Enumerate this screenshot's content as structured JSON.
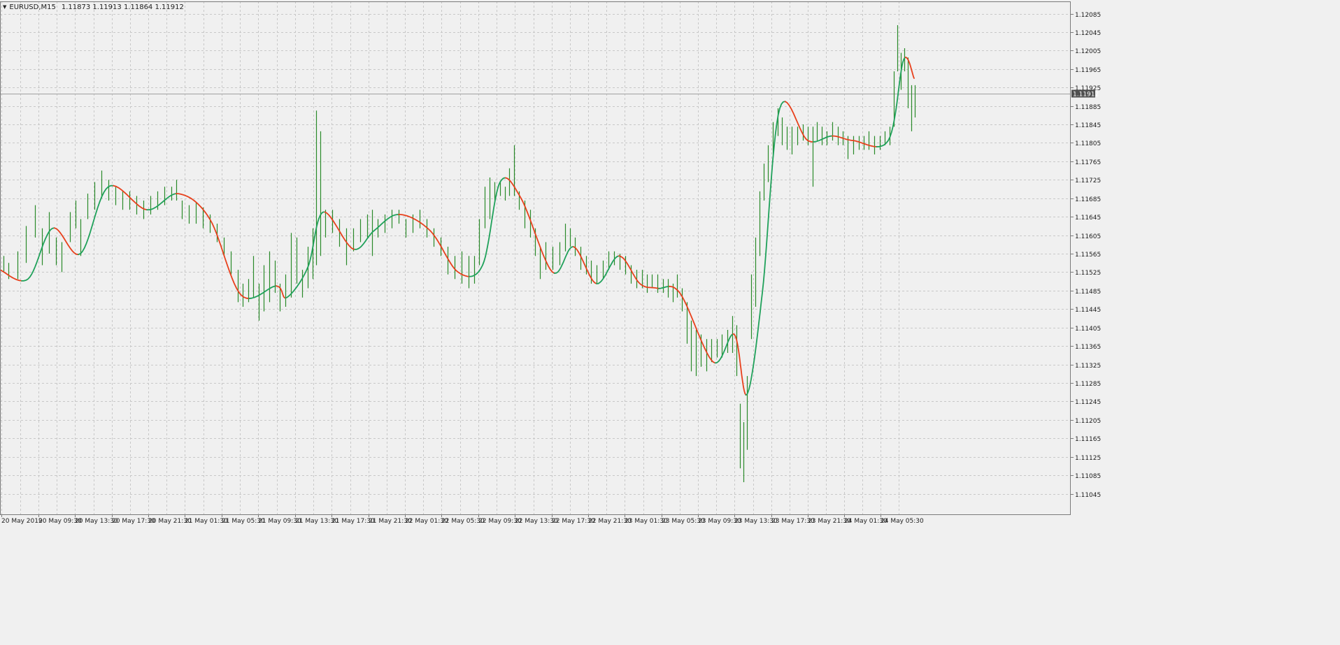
{
  "header": {
    "symbol": "EURUSD,M15",
    "quote": "1.11873 1.11913 1.11864 1.11912"
  },
  "price_axis": {
    "ticks": [
      "1.12085",
      "1.12045",
      "1.12005",
      "1.11965",
      "1.11925",
      "1.11885",
      "1.11845",
      "1.11805",
      "1.11765",
      "1.11725",
      "1.11685",
      "1.11645",
      "1.11605",
      "1.11565",
      "1.11525",
      "1.11485",
      "1.11445",
      "1.11405",
      "1.11365",
      "1.11325",
      "1.11285",
      "1.11245",
      "1.11205",
      "1.11165",
      "1.11125",
      "1.11085",
      "1.11045"
    ],
    "current_price_label": "1.11912"
  },
  "time_axis": {
    "labels": [
      "20 May 2019",
      "20 May 09:30",
      "20 May 13:30",
      "20 May 17:30",
      "20 May 21:30",
      "21 May 01:30",
      "21 May 05:30",
      "21 May 09:30",
      "21 May 13:30",
      "21 May 17:30",
      "21 May 21:30",
      "22 May 01:30",
      "22 May 05:30",
      "22 May 09:30",
      "22 May 13:30",
      "22 May 17:30",
      "22 May 21:30",
      "23 May 01:30",
      "23 May 05:30",
      "23 May 09:30",
      "23 May 13:30",
      "23 May 17:30",
      "23 May 21:30",
      "24 May 01:30",
      "24 May 05:30"
    ]
  },
  "colors": {
    "background": "#f0f0f0",
    "grid": "#c8c8c8",
    "bar": "#2a8a2a",
    "ma_up": "#1fa15a",
    "ma_down": "#e8401c",
    "price_line": "#a0a0a0",
    "price_label_bg": "#505050",
    "price_label_fg": "#ffffff",
    "axis_text": "#202020"
  },
  "chart_data": {
    "type": "ohlc",
    "symbol": "EURUSD",
    "timeframe": "M15",
    "ylim": [
      1.11045,
      1.12085
    ],
    "current_price": 1.11912,
    "ma_anchors": [
      [
        0,
        1.1153
      ],
      [
        40,
        1.1151
      ],
      [
        75,
        1.1162
      ],
      [
        115,
        1.11565
      ],
      [
        155,
        1.1171
      ],
      [
        210,
        1.1166
      ],
      [
        255,
        1.11695
      ],
      [
        300,
        1.1164
      ],
      [
        345,
        1.11475
      ],
      [
        395,
        1.11495
      ],
      [
        410,
        1.1147
      ],
      [
        440,
        1.11535
      ],
      [
        462,
        1.11655
      ],
      [
        505,
        1.11575
      ],
      [
        535,
        1.11615
      ],
      [
        570,
        1.1165
      ],
      [
        615,
        1.11615
      ],
      [
        655,
        1.11525
      ],
      [
        690,
        1.1154
      ],
      [
        715,
        1.1172
      ],
      [
        745,
        1.11685
      ],
      [
        790,
        1.11525
      ],
      [
        820,
        1.1158
      ],
      [
        853,
        1.115
      ],
      [
        885,
        1.1156
      ],
      [
        915,
        1.115
      ],
      [
        940,
        1.1149
      ],
      [
        972,
        1.1148
      ],
      [
        1020,
        1.1133
      ],
      [
        1050,
        1.1139
      ],
      [
        1068,
        1.1126
      ],
      [
        1090,
        1.1148
      ],
      [
        1115,
        1.1188
      ],
      [
        1155,
        1.1181
      ],
      [
        1190,
        1.1182
      ],
      [
        1220,
        1.1181
      ],
      [
        1270,
        1.1181
      ],
      [
        1292,
        1.11985
      ],
      [
        1307,
        1.11945
      ]
    ],
    "bars": [
      [
        5,
        1.11525,
        1.1156
      ],
      [
        12,
        1.1151,
        1.11545
      ],
      [
        25,
        1.1151,
        1.1157
      ],
      [
        37,
        1.11545,
        1.11625
      ],
      [
        50,
        1.116,
        1.1167
      ],
      [
        60,
        1.1154,
        1.1162
      ],
      [
        70,
        1.11565,
        1.11655
      ],
      [
        80,
        1.1154,
        1.116
      ],
      [
        88,
        1.11525,
        1.1159
      ],
      [
        100,
        1.1159,
        1.11655
      ],
      [
        108,
        1.1162,
        1.1168
      ],
      [
        115,
        1.1156,
        1.1164
      ],
      [
        125,
        1.1164,
        1.11695
      ],
      [
        135,
        1.1166,
        1.1172
      ],
      [
        145,
        1.11685,
        1.11745
      ],
      [
        155,
        1.1168,
        1.11725
      ],
      [
        165,
        1.1167,
        1.1171
      ],
      [
        175,
        1.1166,
        1.117
      ],
      [
        185,
        1.1166,
        1.117
      ],
      [
        195,
        1.1165,
        1.1169
      ],
      [
        205,
        1.1164,
        1.1168
      ],
      [
        215,
        1.1165,
        1.1169
      ],
      [
        225,
        1.1166,
        1.117
      ],
      [
        235,
        1.1167,
        1.1171
      ],
      [
        245,
        1.1168,
        1.1171
      ],
      [
        252,
        1.1168,
        1.11725
      ],
      [
        260,
        1.1164,
        1.1168
      ],
      [
        270,
        1.1163,
        1.1167
      ],
      [
        280,
        1.1163,
        1.11675
      ],
      [
        290,
        1.1162,
        1.11665
      ],
      [
        300,
        1.1161,
        1.1165
      ],
      [
        310,
        1.1159,
        1.1163
      ],
      [
        320,
        1.1156,
        1.116
      ],
      [
        330,
        1.1152,
        1.1157
      ],
      [
        340,
        1.1146,
        1.1153
      ],
      [
        347,
        1.1145,
        1.115
      ],
      [
        355,
        1.1146,
        1.1151
      ],
      [
        362,
        1.1147,
        1.1156
      ],
      [
        370,
        1.1142,
        1.115
      ],
      [
        377,
        1.1144,
        1.1154
      ],
      [
        385,
        1.1146,
        1.1157
      ],
      [
        393,
        1.1148,
        1.1155
      ],
      [
        400,
        1.1144,
        1.115
      ],
      [
        408,
        1.1145,
        1.1152
      ],
      [
        416,
        1.1147,
        1.1161
      ],
      [
        424,
        1.115,
        1.116
      ],
      [
        432,
        1.1147,
        1.1153
      ],
      [
        440,
        1.1149,
        1.1158
      ],
      [
        447,
        1.1151,
        1.1162
      ],
      [
        452,
        1.1154,
        1.11875
      ],
      [
        458,
        1.1156,
        1.1183
      ],
      [
        465,
        1.116,
        1.1166
      ],
      [
        475,
        1.1161,
        1.1166
      ],
      [
        485,
        1.1158,
        1.1164
      ],
      [
        495,
        1.1154,
        1.1162
      ],
      [
        505,
        1.1157,
        1.1162
      ],
      [
        515,
        1.1159,
        1.1164
      ],
      [
        525,
        1.116,
        1.1165
      ],
      [
        532,
        1.1156,
        1.1166
      ],
      [
        540,
        1.116,
        1.1164
      ],
      [
        550,
        1.1161,
        1.1165
      ],
      [
        560,
        1.1162,
        1.1166
      ],
      [
        570,
        1.1163,
        1.1166
      ],
      [
        580,
        1.116,
        1.1164
      ],
      [
        590,
        1.1161,
        1.1165
      ],
      [
        600,
        1.1162,
        1.1166
      ],
      [
        610,
        1.116,
        1.1164
      ],
      [
        620,
        1.1158,
        1.1162
      ],
      [
        630,
        1.1156,
        1.116
      ],
      [
        640,
        1.1152,
        1.1158
      ],
      [
        650,
        1.1151,
        1.1156
      ],
      [
        660,
        1.115,
        1.1157
      ],
      [
        670,
        1.1149,
        1.1156
      ],
      [
        678,
        1.115,
        1.1156
      ],
      [
        685,
        1.1154,
        1.1164
      ],
      [
        693,
        1.1162,
        1.1171
      ],
      [
        700,
        1.1164,
        1.1173
      ],
      [
        707,
        1.1168,
        1.1172
      ],
      [
        715,
        1.1169,
        1.1172
      ],
      [
        722,
        1.1168,
        1.1171
      ],
      [
        728,
        1.1169,
        1.1175
      ],
      [
        735,
        1.1169,
        1.118
      ],
      [
        742,
        1.1166,
        1.117
      ],
      [
        750,
        1.1162,
        1.1168
      ],
      [
        758,
        1.116,
        1.1166
      ],
      [
        765,
        1.1156,
        1.1162
      ],
      [
        772,
        1.1151,
        1.1158
      ],
      [
        780,
        1.1153,
        1.1159
      ],
      [
        790,
        1.1153,
        1.1158
      ],
      [
        800,
        1.1154,
        1.1159
      ],
      [
        808,
        1.1157,
        1.1163
      ],
      [
        815,
        1.1158,
        1.1162
      ],
      [
        822,
        1.1156,
        1.116
      ],
      [
        830,
        1.1153,
        1.1158
      ],
      [
        838,
        1.1152,
        1.1156
      ],
      [
        845,
        1.115,
        1.1155
      ],
      [
        853,
        1.115,
        1.1154
      ],
      [
        862,
        1.1151,
        1.1155
      ],
      [
        870,
        1.1153,
        1.1157
      ],
      [
        878,
        1.1154,
        1.1157
      ],
      [
        886,
        1.1153,
        1.11565
      ],
      [
        894,
        1.1152,
        1.1156
      ],
      [
        902,
        1.115,
        1.1154
      ],
      [
        910,
        1.1149,
        1.1153
      ],
      [
        918,
        1.1149,
        1.1153
      ],
      [
        925,
        1.1148,
        1.1152
      ],
      [
        932,
        1.1149,
        1.1152
      ],
      [
        940,
        1.1148,
        1.1152
      ],
      [
        948,
        1.1148,
        1.1151
      ],
      [
        955,
        1.1147,
        1.1151
      ],
      [
        962,
        1.1146,
        1.115
      ],
      [
        968,
        1.1147,
        1.1152
      ],
      [
        975,
        1.1144,
        1.1149
      ],
      [
        982,
        1.1137,
        1.1146
      ],
      [
        988,
        1.1131,
        1.1142
      ],
      [
        995,
        1.113,
        1.114
      ],
      [
        1002,
        1.1132,
        1.1139
      ],
      [
        1010,
        1.1131,
        1.1138
      ],
      [
        1017,
        1.1133,
        1.1138
      ],
      [
        1025,
        1.1134,
        1.1138
      ],
      [
        1032,
        1.1134,
        1.1139
      ],
      [
        1040,
        1.1135,
        1.114
      ],
      [
        1047,
        1.1135,
        1.1143
      ],
      [
        1053,
        1.113,
        1.1141
      ],
      [
        1058,
        1.111,
        1.1124
      ],
      [
        1063,
        1.1107,
        1.112
      ],
      [
        1068,
        1.1114,
        1.113
      ],
      [
        1074,
        1.1138,
        1.1152
      ],
      [
        1080,
        1.1145,
        1.116
      ],
      [
        1086,
        1.1156,
        1.117
      ],
      [
        1092,
        1.1168,
        1.1176
      ],
      [
        1098,
        1.1172,
        1.118
      ],
      [
        1105,
        1.1178,
        1.1185
      ],
      [
        1112,
        1.1182,
        1.1188
      ],
      [
        1118,
        1.118,
        1.1186
      ],
      [
        1125,
        1.1179,
        1.1184
      ],
      [
        1132,
        1.1178,
        1.1184
      ],
      [
        1140,
        1.118,
        1.1184
      ],
      [
        1148,
        1.1181,
        1.11845
      ],
      [
        1155,
        1.118,
        1.1184
      ],
      [
        1162,
        1.1171,
        1.1184
      ],
      [
        1168,
        1.1181,
        1.1185
      ],
      [
        1175,
        1.118,
        1.1184
      ],
      [
        1182,
        1.118,
        1.1183
      ],
      [
        1190,
        1.1181,
        1.1185
      ],
      [
        1198,
        1.118,
        1.1184
      ],
      [
        1205,
        1.118,
        1.1183
      ],
      [
        1212,
        1.1177,
        1.1182
      ],
      [
        1220,
        1.1178,
        1.1182
      ],
      [
        1228,
        1.1179,
        1.1182
      ],
      [
        1235,
        1.1179,
        1.1182
      ],
      [
        1242,
        1.1179,
        1.1183
      ],
      [
        1250,
        1.1178,
        1.1182
      ],
      [
        1258,
        1.1179,
        1.1182
      ],
      [
        1265,
        1.118,
        1.1183
      ],
      [
        1272,
        1.118,
        1.1184
      ],
      [
        1278,
        1.1184,
        1.1196
      ],
      [
        1283,
        1.1196,
        1.1206
      ],
      [
        1288,
        1.1192,
        1.12
      ],
      [
        1293,
        1.1196,
        1.1201
      ],
      [
        1298,
        1.1188,
        1.1199
      ],
      [
        1303,
        1.1183,
        1.1193
      ],
      [
        1308,
        1.1186,
        1.1193
      ]
    ]
  }
}
